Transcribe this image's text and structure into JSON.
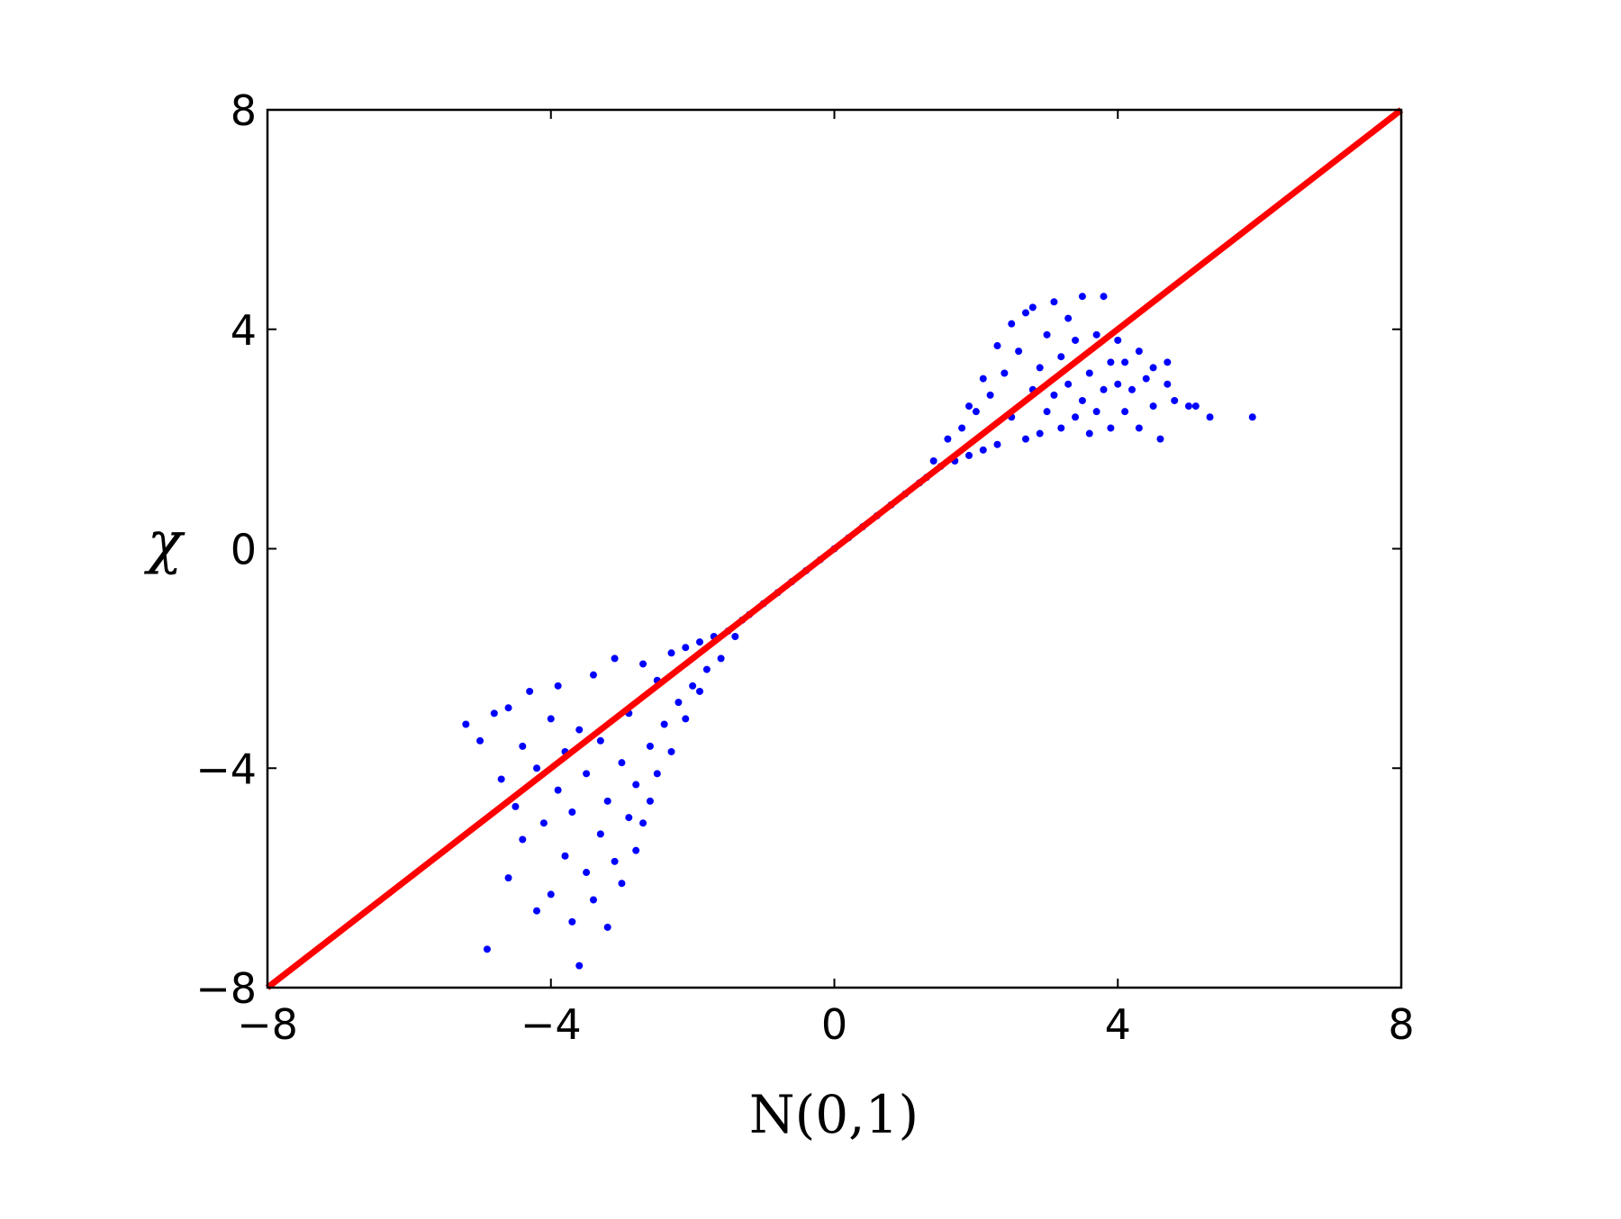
{
  "chart_data": {
    "type": "scatter",
    "xlabel": "N(0,1)",
    "ylabel": "χ",
    "xlim": [
      -8,
      8
    ],
    "ylim": [
      -8,
      8
    ],
    "xticks": [
      -8,
      -4,
      0,
      4,
      8
    ],
    "yticks": [
      -8,
      -4,
      0,
      4,
      8
    ],
    "xtick_labels": [
      "−8",
      "−4",
      "0",
      "4",
      "8"
    ],
    "ytick_labels": [
      "−8",
      "−4",
      "0",
      "4",
      "8"
    ],
    "grid": false,
    "legend": "none",
    "colors": {
      "points": "#0000ff",
      "reference_line": "#ff0000",
      "axes": "#000000"
    },
    "series": [
      {
        "kind": "scatter",
        "color": "#0000ff",
        "points": [
          {
            "x": -5.2,
            "y": -3.2
          },
          {
            "x": -5.0,
            "y": -3.5
          },
          {
            "x": -4.9,
            "y": -7.3
          },
          {
            "x": -4.8,
            "y": -3.0
          },
          {
            "x": -4.7,
            "y": -4.2
          },
          {
            "x": -4.6,
            "y": -2.9
          },
          {
            "x": -4.6,
            "y": -6.0
          },
          {
            "x": -4.5,
            "y": -4.7
          },
          {
            "x": -4.4,
            "y": -3.6
          },
          {
            "x": -4.4,
            "y": -5.3
          },
          {
            "x": -4.3,
            "y": -2.6
          },
          {
            "x": -4.2,
            "y": -6.6
          },
          {
            "x": -4.2,
            "y": -4.0
          },
          {
            "x": -4.1,
            "y": -5.0
          },
          {
            "x": -4.0,
            "y": -3.1
          },
          {
            "x": -4.0,
            "y": -6.3
          },
          {
            "x": -3.9,
            "y": -4.4
          },
          {
            "x": -3.9,
            "y": -2.5
          },
          {
            "x": -3.8,
            "y": -5.6
          },
          {
            "x": -3.8,
            "y": -3.7
          },
          {
            "x": -3.7,
            "y": -6.8
          },
          {
            "x": -3.7,
            "y": -4.8
          },
          {
            "x": -3.6,
            "y": -7.6
          },
          {
            "x": -3.6,
            "y": -3.3
          },
          {
            "x": -3.5,
            "y": -5.9
          },
          {
            "x": -3.5,
            "y": -4.1
          },
          {
            "x": -3.4,
            "y": -2.3
          },
          {
            "x": -3.4,
            "y": -6.4
          },
          {
            "x": -3.3,
            "y": -5.2
          },
          {
            "x": -3.3,
            "y": -3.5
          },
          {
            "x": -3.2,
            "y": -6.9
          },
          {
            "x": -3.2,
            "y": -4.6
          },
          {
            "x": -3.1,
            "y": -2.0
          },
          {
            "x": -3.1,
            "y": -5.7
          },
          {
            "x": -3.0,
            "y": -3.9
          },
          {
            "x": -3.0,
            "y": -6.1
          },
          {
            "x": -2.9,
            "y": -4.9
          },
          {
            "x": -2.9,
            "y": -3.0
          },
          {
            "x": -2.8,
            "y": -5.5
          },
          {
            "x": -2.8,
            "y": -4.3
          },
          {
            "x": -2.7,
            "y": -2.1
          },
          {
            "x": -2.7,
            "y": -5.0
          },
          {
            "x": -2.6,
            "y": -3.6
          },
          {
            "x": -2.6,
            "y": -4.6
          },
          {
            "x": -2.5,
            "y": -2.4
          },
          {
            "x": -2.5,
            "y": -4.1
          },
          {
            "x": -2.4,
            "y": -3.2
          },
          {
            "x": -2.3,
            "y": -1.9
          },
          {
            "x": -2.3,
            "y": -3.7
          },
          {
            "x": -2.2,
            "y": -2.8
          },
          {
            "x": -2.1,
            "y": -1.8
          },
          {
            "x": -2.1,
            "y": -3.1
          },
          {
            "x": -2.0,
            "y": -2.5
          },
          {
            "x": -1.9,
            "y": -1.7
          },
          {
            "x": -1.9,
            "y": -2.6
          },
          {
            "x": -1.8,
            "y": -2.2
          },
          {
            "x": -1.7,
            "y": -1.6
          },
          {
            "x": -1.6,
            "y": -2.0
          },
          {
            "x": -1.5,
            "y": -1.5
          },
          {
            "x": -1.4,
            "y": -1.6
          },
          {
            "x": -1.3,
            "y": -1.3
          },
          {
            "x": -1.2,
            "y": -1.2
          },
          {
            "x": -1.0,
            "y": -1.0
          },
          {
            "x": -0.8,
            "y": -0.8
          },
          {
            "x": -0.6,
            "y": -0.6
          },
          {
            "x": -0.4,
            "y": -0.4
          },
          {
            "x": -0.2,
            "y": -0.2
          },
          {
            "x": 0.0,
            "y": 0.0
          },
          {
            "x": 0.2,
            "y": 0.2
          },
          {
            "x": 0.4,
            "y": 0.4
          },
          {
            "x": 0.6,
            "y": 0.6
          },
          {
            "x": 0.8,
            "y": 0.8
          },
          {
            "x": 1.0,
            "y": 1.0
          },
          {
            "x": 1.2,
            "y": 1.2
          },
          {
            "x": 1.3,
            "y": 1.3
          },
          {
            "x": 1.4,
            "y": 1.6
          },
          {
            "x": 1.5,
            "y": 1.5
          },
          {
            "x": 1.6,
            "y": 2.0
          },
          {
            "x": 1.7,
            "y": 1.6
          },
          {
            "x": 1.8,
            "y": 2.2
          },
          {
            "x": 1.9,
            "y": 1.7
          },
          {
            "x": 1.9,
            "y": 2.6
          },
          {
            "x": 2.0,
            "y": 2.5
          },
          {
            "x": 2.1,
            "y": 1.8
          },
          {
            "x": 2.1,
            "y": 3.1
          },
          {
            "x": 2.2,
            "y": 2.8
          },
          {
            "x": 2.3,
            "y": 1.9
          },
          {
            "x": 2.3,
            "y": 3.7
          },
          {
            "x": 2.4,
            "y": 3.2
          },
          {
            "x": 2.5,
            "y": 2.4
          },
          {
            "x": 2.5,
            "y": 4.1
          },
          {
            "x": 2.6,
            "y": 3.6
          },
          {
            "x": 2.7,
            "y": 2.0
          },
          {
            "x": 2.7,
            "y": 4.3
          },
          {
            "x": 2.8,
            "y": 2.9
          },
          {
            "x": 2.8,
            "y": 4.4
          },
          {
            "x": 2.9,
            "y": 3.3
          },
          {
            "x": 2.9,
            "y": 2.1
          },
          {
            "x": 3.0,
            "y": 3.9
          },
          {
            "x": 3.0,
            "y": 2.5
          },
          {
            "x": 3.1,
            "y": 4.5
          },
          {
            "x": 3.1,
            "y": 2.8
          },
          {
            "x": 3.2,
            "y": 3.5
          },
          {
            "x": 3.2,
            "y": 2.2
          },
          {
            "x": 3.3,
            "y": 4.2
          },
          {
            "x": 3.3,
            "y": 3.0
          },
          {
            "x": 3.4,
            "y": 2.4
          },
          {
            "x": 3.4,
            "y": 3.8
          },
          {
            "x": 3.5,
            "y": 2.7
          },
          {
            "x": 3.5,
            "y": 4.6
          },
          {
            "x": 3.6,
            "y": 3.2
          },
          {
            "x": 3.6,
            "y": 2.1
          },
          {
            "x": 3.7,
            "y": 3.9
          },
          {
            "x": 3.7,
            "y": 2.5
          },
          {
            "x": 3.8,
            "y": 4.6
          },
          {
            "x": 3.8,
            "y": 2.9
          },
          {
            "x": 3.9,
            "y": 3.4
          },
          {
            "x": 3.9,
            "y": 2.2
          },
          {
            "x": 4.0,
            "y": 3.0
          },
          {
            "x": 4.0,
            "y": 3.8
          },
          {
            "x": 4.1,
            "y": 2.5
          },
          {
            "x": 4.1,
            "y": 3.4
          },
          {
            "x": 4.2,
            "y": 2.9
          },
          {
            "x": 4.3,
            "y": 3.6
          },
          {
            "x": 4.3,
            "y": 2.2
          },
          {
            "x": 4.4,
            "y": 3.1
          },
          {
            "x": 4.5,
            "y": 2.6
          },
          {
            "x": 4.5,
            "y": 3.3
          },
          {
            "x": 4.6,
            "y": 2.0
          },
          {
            "x": 4.7,
            "y": 3.0
          },
          {
            "x": 4.7,
            "y": 3.4
          },
          {
            "x": 4.8,
            "y": 2.7
          },
          {
            "x": 5.0,
            "y": 2.6
          },
          {
            "x": 5.1,
            "y": 2.6
          },
          {
            "x": 5.3,
            "y": 2.4
          },
          {
            "x": 5.9,
            "y": 2.4
          }
        ]
      },
      {
        "kind": "line",
        "color": "#ff0000",
        "x": [
          -8,
          8
        ],
        "y": [
          -8,
          8
        ]
      }
    ]
  }
}
